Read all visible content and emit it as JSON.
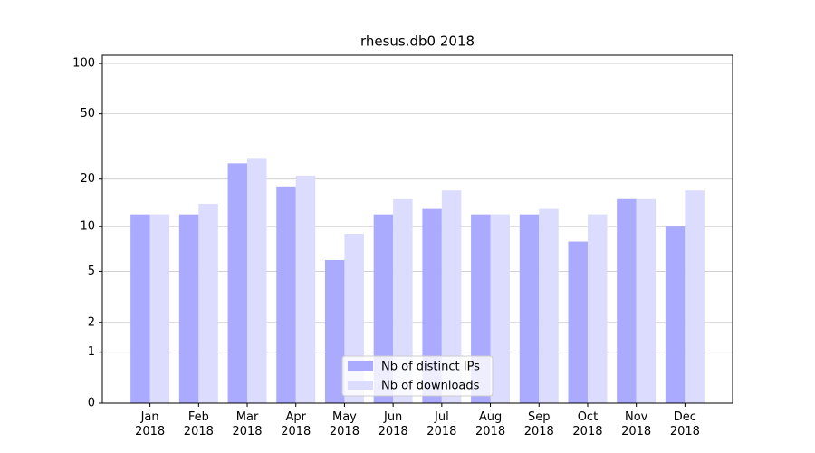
{
  "chart_data": {
    "type": "bar",
    "title": "rhesus.db0 2018",
    "categories": [
      "Jan\n2018",
      "Feb\n2018",
      "Mar\n2018",
      "Apr\n2018",
      "May\n2018",
      "Jun\n2018",
      "Jul\n2018",
      "Aug\n2018",
      "Sep\n2018",
      "Oct\n2018",
      "Nov\n2018",
      "Dec\n2018"
    ],
    "series": [
      {
        "name": "Nb of distinct IPs",
        "color": "#aaaaff",
        "values": [
          12,
          12,
          25,
          18,
          6,
          12,
          13,
          12,
          12,
          8,
          15,
          10
        ]
      },
      {
        "name": "Nb of downloads",
        "color": "#dcdcff",
        "values": [
          12,
          14,
          27,
          21,
          9,
          15,
          17,
          12,
          13,
          12,
          15,
          17
        ]
      }
    ],
    "y_scale": "log1p",
    "ylim": [
      0,
      112
    ],
    "yticks": [
      0,
      1,
      2,
      5,
      10,
      20,
      50,
      100
    ],
    "grid": true,
    "legend": "lower center"
  }
}
